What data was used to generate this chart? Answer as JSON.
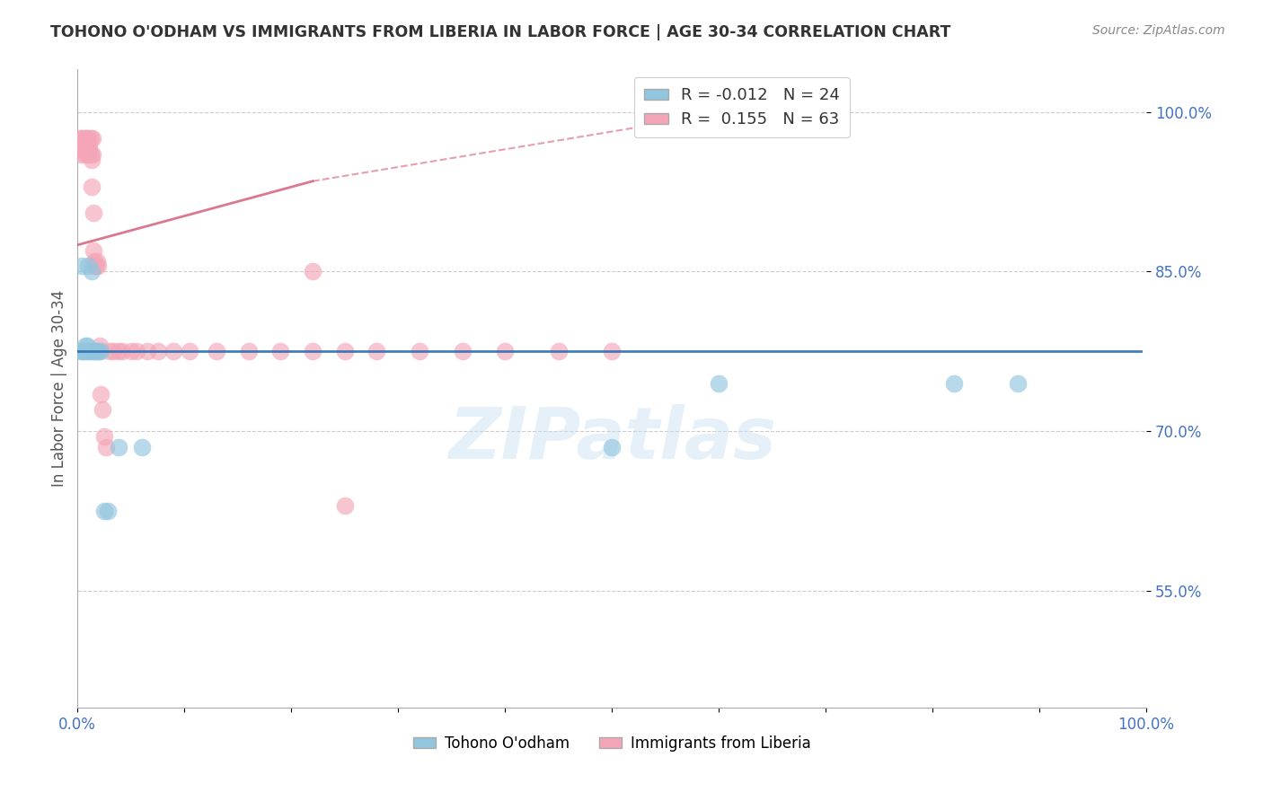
{
  "title": "TOHONO O'ODHAM VS IMMIGRANTS FROM LIBERIA IN LABOR FORCE | AGE 30-34 CORRELATION CHART",
  "source": "Source: ZipAtlas.com",
  "ylabel": "In Labor Force | Age 30-34",
  "xlim": [
    0.0,
    1.0
  ],
  "ylim": [
    0.44,
    1.04
  ],
  "x_tick_positions": [
    0.0,
    0.1,
    0.2,
    0.3,
    0.4,
    0.5,
    0.6,
    0.7,
    0.8,
    0.9,
    1.0
  ],
  "x_tick_labels": [
    "0.0%",
    "",
    "",
    "",
    "",
    "",
    "",
    "",
    "",
    "",
    "100.0%"
  ],
  "y_ticks": [
    0.55,
    0.7,
    0.85,
    1.0
  ],
  "y_tick_labels": [
    "55.0%",
    "70.0%",
    "85.0%",
    "100.0%"
  ],
  "legend_blue_R": "-0.012",
  "legend_blue_N": "24",
  "legend_pink_R": "0.155",
  "legend_pink_N": "63",
  "blue_color": "#92c5de",
  "pink_color": "#f4a6b8",
  "trendline_blue_color": "#3070b3",
  "trendline_pink_color": "#d4607a",
  "watermark": "ZIPatlas",
  "blue_scatter_x": [
    0.003,
    0.004,
    0.005,
    0.006,
    0.007,
    0.008,
    0.009,
    0.01,
    0.011,
    0.012,
    0.013,
    0.015,
    0.016,
    0.017,
    0.019,
    0.022,
    0.025,
    0.028,
    0.038,
    0.06,
    0.5,
    0.6,
    0.82,
    0.88
  ],
  "blue_scatter_y": [
    0.775,
    0.855,
    0.775,
    0.775,
    0.78,
    0.775,
    0.78,
    0.855,
    0.775,
    0.775,
    0.85,
    0.775,
    0.775,
    0.775,
    0.775,
    0.775,
    0.625,
    0.625,
    0.685,
    0.685,
    0.685,
    0.745,
    0.745,
    0.745
  ],
  "pink_scatter_x": [
    0.002,
    0.002,
    0.003,
    0.003,
    0.004,
    0.004,
    0.005,
    0.005,
    0.006,
    0.006,
    0.007,
    0.007,
    0.007,
    0.008,
    0.008,
    0.009,
    0.009,
    0.01,
    0.01,
    0.011,
    0.011,
    0.012,
    0.012,
    0.013,
    0.013,
    0.014,
    0.014,
    0.015,
    0.015,
    0.016,
    0.016,
    0.017,
    0.018,
    0.019,
    0.02,
    0.021,
    0.022,
    0.023,
    0.025,
    0.027,
    0.03,
    0.033,
    0.038,
    0.042,
    0.05,
    0.055,
    0.065,
    0.075,
    0.09,
    0.105,
    0.13,
    0.16,
    0.19,
    0.22,
    0.25,
    0.28,
    0.32,
    0.36,
    0.4,
    0.45,
    0.5,
    0.22,
    0.25
  ],
  "pink_scatter_y": [
    0.97,
    0.975,
    0.96,
    0.965,
    0.97,
    0.975,
    0.97,
    0.975,
    0.965,
    0.97,
    0.975,
    0.96,
    0.965,
    0.97,
    0.975,
    0.965,
    0.97,
    0.96,
    0.975,
    0.965,
    0.97,
    0.96,
    0.975,
    0.93,
    0.955,
    0.96,
    0.975,
    0.87,
    0.905,
    0.855,
    0.86,
    0.855,
    0.86,
    0.855,
    0.775,
    0.78,
    0.735,
    0.72,
    0.695,
    0.685,
    0.775,
    0.775,
    0.775,
    0.775,
    0.775,
    0.775,
    0.775,
    0.775,
    0.775,
    0.775,
    0.775,
    0.775,
    0.775,
    0.775,
    0.775,
    0.775,
    0.775,
    0.775,
    0.775,
    0.775,
    0.775,
    0.85,
    0.63
  ]
}
